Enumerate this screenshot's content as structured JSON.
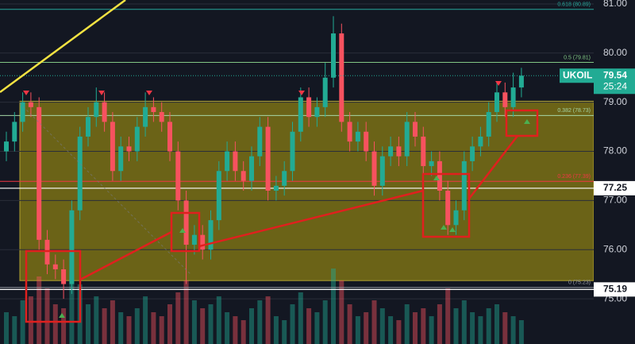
{
  "chart_data": {
    "type": "candlestick",
    "symbol": "UKOIL",
    "countdown": "25:24",
    "ylim": [
      74.08,
      81.08
    ],
    "yticks": [
      {
        "value": 81,
        "label": "81.00"
      },
      {
        "value": 80,
        "label": "80.00"
      },
      {
        "value": 79,
        "label": "79.00"
      },
      {
        "value": 78,
        "label": "78.00"
      },
      {
        "value": 77,
        "label": "77.00"
      },
      {
        "value": 76,
        "label": "76.00"
      },
      {
        "value": 75,
        "label": "75.00"
      }
    ],
    "up_color": "#22ab94",
    "down_color": "#f7525f",
    "ohlc": [
      [
        78.0,
        78.4,
        77.8,
        78.2
      ],
      [
        78.2,
        78.8,
        78.0,
        78.6
      ],
      [
        78.6,
        79.2,
        78.4,
        79.0
      ],
      [
        79.0,
        79.2,
        78.7,
        78.9
      ],
      [
        78.9,
        79.1,
        76.0,
        76.2
      ],
      [
        76.2,
        76.4,
        75.5,
        75.7
      ],
      [
        75.7,
        75.9,
        75.4,
        75.6
      ],
      [
        75.6,
        75.8,
        75.0,
        75.3
      ],
      [
        75.3,
        77.0,
        75.1,
        76.8
      ],
      [
        76.8,
        78.5,
        76.6,
        78.3
      ],
      [
        78.3,
        78.9,
        78.1,
        78.7
      ],
      [
        78.7,
        79.3,
        78.5,
        79.0
      ],
      [
        79.0,
        79.2,
        78.4,
        78.6
      ],
      [
        78.6,
        78.8,
        77.4,
        77.6
      ],
      [
        77.6,
        78.3,
        77.4,
        78.1
      ],
      [
        78.1,
        78.3,
        77.8,
        78.0
      ],
      [
        78.0,
        78.7,
        77.8,
        78.5
      ],
      [
        78.5,
        79.2,
        78.3,
        78.9
      ],
      [
        78.9,
        79.1,
        78.6,
        78.8
      ],
      [
        78.8,
        79.0,
        78.4,
        78.6
      ],
      [
        78.6,
        78.8,
        77.8,
        78.0
      ],
      [
        78.0,
        78.2,
        76.8,
        77.0
      ],
      [
        77.0,
        77.2,
        75.3,
        76.1
      ],
      [
        76.1,
        76.5,
        75.9,
        76.3
      ],
      [
        76.3,
        76.5,
        75.8,
        76.0
      ],
      [
        76.0,
        76.8,
        75.8,
        76.6
      ],
      [
        76.6,
        77.8,
        76.4,
        77.6
      ],
      [
        77.6,
        78.2,
        77.4,
        78.0
      ],
      [
        78.0,
        78.2,
        77.4,
        77.6
      ],
      [
        77.6,
        77.8,
        77.2,
        77.4
      ],
      [
        77.4,
        78.1,
        77.2,
        77.9
      ],
      [
        77.9,
        78.7,
        77.7,
        78.5
      ],
      [
        78.5,
        78.7,
        77.0,
        77.2
      ],
      [
        77.2,
        77.5,
        77.0,
        77.3
      ],
      [
        77.3,
        77.8,
        77.1,
        77.6
      ],
      [
        77.6,
        78.6,
        77.4,
        78.4
      ],
      [
        78.4,
        79.3,
        78.2,
        79.1
      ],
      [
        79.1,
        79.3,
        78.5,
        78.7
      ],
      [
        78.7,
        79.1,
        78.5,
        78.9
      ],
      [
        78.9,
        79.8,
        78.7,
        79.5
      ],
      [
        79.5,
        80.75,
        79.3,
        80.4
      ],
      [
        80.4,
        80.6,
        78.4,
        78.6
      ],
      [
        78.6,
        78.8,
        78.0,
        78.2
      ],
      [
        78.2,
        78.6,
        78.0,
        78.4
      ],
      [
        78.4,
        78.6,
        77.8,
        78.0
      ],
      [
        78.0,
        78.2,
        77.1,
        77.3
      ],
      [
        77.3,
        78.1,
        77.1,
        77.9
      ],
      [
        77.9,
        78.3,
        77.7,
        78.1
      ],
      [
        78.1,
        78.3,
        77.7,
        77.9
      ],
      [
        77.9,
        78.8,
        77.7,
        78.6
      ],
      [
        78.6,
        78.8,
        78.1,
        78.3
      ],
      [
        78.3,
        78.5,
        77.5,
        77.7
      ],
      [
        77.7,
        78.0,
        77.5,
        77.8
      ],
      [
        77.8,
        78.0,
        77.0,
        77.2
      ],
      [
        77.2,
        77.4,
        76.3,
        76.5
      ],
      [
        76.5,
        77.0,
        76.3,
        76.8
      ],
      [
        76.8,
        78.0,
        76.6,
        77.8
      ],
      [
        77.8,
        78.3,
        77.6,
        78.1
      ],
      [
        78.1,
        78.5,
        77.9,
        78.3
      ],
      [
        78.3,
        79.0,
        78.1,
        78.8
      ],
      [
        78.8,
        79.4,
        78.6,
        79.2
      ],
      [
        79.2,
        79.4,
        78.7,
        78.9
      ],
      [
        78.9,
        79.6,
        78.7,
        79.3
      ],
      [
        79.3,
        79.7,
        79.1,
        79.54
      ]
    ],
    "volume": [
      40,
      35,
      55,
      60,
      85,
      70,
      50,
      45,
      90,
      75,
      50,
      60,
      45,
      55,
      40,
      35,
      45,
      60,
      40,
      35,
      50,
      65,
      80,
      55,
      45,
      50,
      60,
      40,
      35,
      30,
      45,
      55,
      60,
      35,
      30,
      50,
      65,
      45,
      40,
      55,
      95,
      80,
      50,
      35,
      40,
      55,
      45,
      35,
      30,
      50,
      40,
      45,
      35,
      50,
      70,
      45,
      55,
      40,
      35,
      45,
      50,
      40,
      35,
      30
    ],
    "vlim": [
      0,
      100
    ],
    "fib_levels": [
      {
        "value": 80.89,
        "label": "0.618 (80.89)",
        "color": "#26a69a"
      },
      {
        "value": 79.81,
        "label": "0.5 (79.81)",
        "color": "#81c784"
      },
      {
        "value": 78.73,
        "label": "0.382 (78.73)",
        "color": "#a5d6a7"
      },
      {
        "value": 77.39,
        "label": "0.236 (77.39)",
        "color": "#f23645"
      },
      {
        "value": 75.23,
        "label": "0 (75.23)",
        "color": "#9598a1"
      }
    ],
    "zone": [
      75.37,
      79.02
    ],
    "zone_color": "#8a7d14",
    "last_price": {
      "value": 79.54,
      "label": "79.54"
    },
    "hlines": [
      {
        "value": 77.25,
        "label": "77.25"
      },
      {
        "value": 75.19,
        "label": "75.19"
      }
    ]
  }
}
